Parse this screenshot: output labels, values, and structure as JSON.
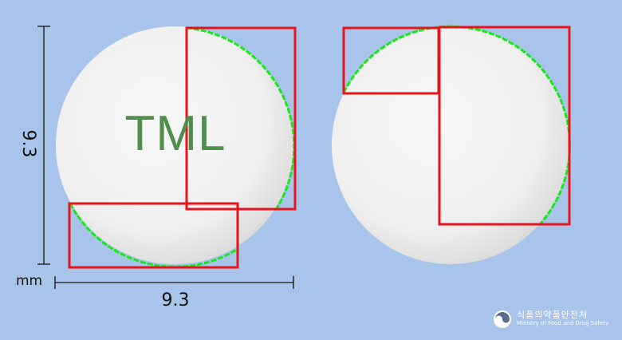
{
  "tablet": {
    "imprint_front": "TML",
    "imprint_back": "",
    "diameter_vertical": "9.3",
    "diameter_horizontal": "9.3",
    "unit": "mm",
    "body_color": "#f2f2f2",
    "imprint_color": "#4f8f4b"
  },
  "overlay": {
    "box_color": "#e8141c",
    "edge_color": "#16e816"
  },
  "background_color": "#a9c4ea",
  "brand": {
    "name_ko": "식품의약품안전처",
    "name_en": "Ministry of Food and Drug Safety",
    "icon": "mfds-logo-icon"
  }
}
